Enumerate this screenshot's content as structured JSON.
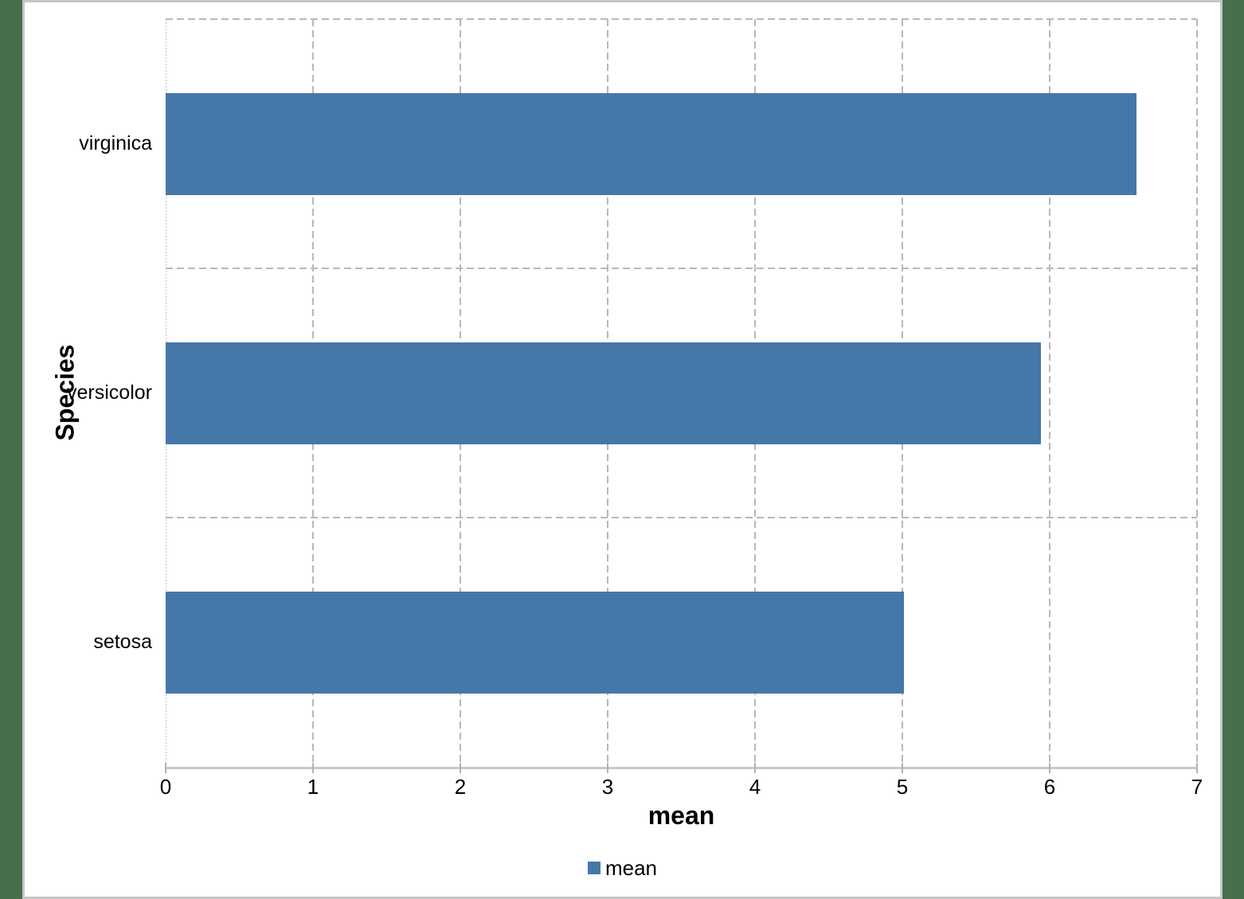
{
  "window": {
    "background_color": "#486E4C",
    "panel_color": "#ffffff",
    "frame_border_color": "#c6c6c6"
  },
  "chart_data": {
    "type": "bar",
    "orientation": "horizontal",
    "title": "",
    "categories": [
      "virginica",
      "versicolor",
      "setosa"
    ],
    "series": [
      {
        "name": "mean",
        "values": [
          6.59,
          5.94,
          5.01
        ]
      }
    ],
    "xlabel": "mean",
    "ylabel": "Species",
    "xlim": [
      0,
      7
    ],
    "xticks": [
      0,
      1,
      2,
      3,
      4,
      5,
      6,
      7
    ],
    "grid": "dashed vertical lines at each integer; dashed horizontal lines at category band boundaries",
    "legend_position": "bottom",
    "legend": {
      "entries": [
        {
          "label": "mean",
          "color": "#4577A8"
        }
      ]
    },
    "bar_color": "#4577A8",
    "gridline_color": "#b8b8b8",
    "axis_line_color": "#c9c9c9"
  }
}
